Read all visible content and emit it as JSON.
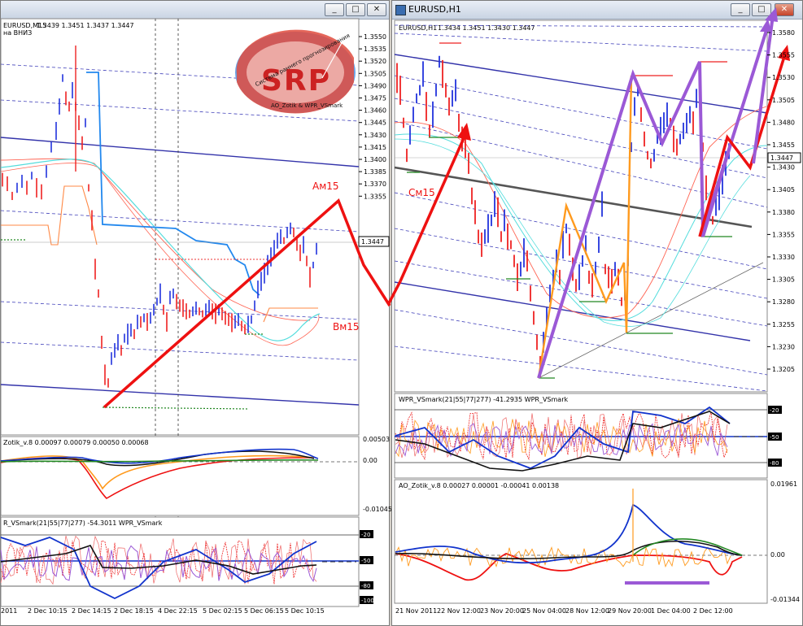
{
  "left_window": {
    "title": "",
    "symbol_label": "EURUSD,M15",
    "ohlc": "1.3439 1.3451 1.3437 1.3447",
    "direction": "на ВНИЗ",
    "logo": {
      "text": "SRP",
      "ring": "Система раннего прогнозирования",
      "author": "AO_Zotik & WPR_VSmark"
    },
    "price_ticks": [
      "1.3550",
      "1.3535",
      "1.3520",
      "1.3505",
      "1.3490",
      "1.3475",
      "1.3460",
      "1.3445",
      "1.3430",
      "1.3415",
      "1.3400",
      "1.3385",
      "1.3370",
      "1.3355"
    ],
    "current_price": "1.3447",
    "labels": {
      "am15": "Ам15",
      "vm15": "Вм15"
    },
    "ao_header": "Zotik_v.8 0.00097 0.00079 0.00050 0.00068",
    "ao_ticks": [
      "0.00503",
      "0.00",
      "-0.01045"
    ],
    "wpr_header": "R_VSmark(21|55|77|277) -54.3011  WPR_VSmark",
    "wpr_ticks": [
      "-20",
      "-50",
      "-80",
      "-100"
    ],
    "time_ticks": [
      "2011",
      "2 Dec 10:15",
      "2 Dec 14:15",
      "2 Dec 18:15",
      "4 Dec 22:15",
      "5 Dec 02:15",
      "5 Dec 06:15",
      "5 Dec 10:15"
    ]
  },
  "right_window": {
    "title": "EURUSD,H1",
    "symbol_label": "EURUSD,H1",
    "ohlc": "1.3434 1.3451 1.3430 1.3447",
    "price_ticks": [
      "1.3580",
      "1.3555",
      "1.3530",
      "1.3505",
      "1.3480",
      "1.3455",
      "1.3430",
      "1.3405",
      "1.3380",
      "1.3355",
      "1.3330",
      "1.3305",
      "1.3280",
      "1.3255",
      "1.3230",
      "1.3205"
    ],
    "current_price": "1.3447",
    "labels": {
      "cm15": "См15"
    },
    "wpr_header": "WPR_VSmark(21|55|77|277) -41.2935  WPR_VSmark",
    "wpr_ticks": [
      "-20",
      "-50",
      "-80"
    ],
    "ao_header": "AO_Zotik_v.8 0.00027 0.00001 -0.00041 0.00138",
    "ao_ticks": [
      "0.01961",
      "0.00",
      "-0.01344"
    ],
    "time_ticks": [
      "21 Nov 2011",
      "22 Nov 12:00",
      "23 Nov 20:00",
      "25 Nov 04:00",
      "28 Nov 12:00",
      "29 Nov 20:00",
      "1 Dec 04:00",
      "2 Dec 12:00"
    ]
  },
  "window_buttons": {
    "minimize": "_",
    "maximize": "□",
    "close": "✕"
  },
  "colors": {
    "bull": "#2233dd",
    "bear": "#ee2222",
    "arrow": "#ee1111",
    "purple": "#9b59d6",
    "orange": "#ff8a1e",
    "channel": "#3333aa",
    "sky": "#33aaff",
    "aqua": "#55dddd"
  }
}
